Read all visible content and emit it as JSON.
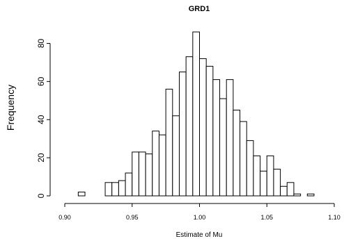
{
  "chart_data": {
    "type": "bar",
    "title": "GRD1",
    "xlabel": "Estimate of Mu",
    "ylabel": "Frequency",
    "xlim": [
      0.9,
      1.1
    ],
    "ylim": [
      0,
      86
    ],
    "bin_width": 0.005,
    "bin_starts": [
      0.91,
      0.915,
      0.92,
      0.925,
      0.93,
      0.935,
      0.94,
      0.945,
      0.95,
      0.955,
      0.96,
      0.965,
      0.97,
      0.975,
      0.98,
      0.985,
      0.99,
      0.995,
      1.0,
      1.005,
      1.01,
      1.015,
      1.02,
      1.025,
      1.03,
      1.035,
      1.04,
      1.045,
      1.05,
      1.055,
      1.06,
      1.065,
      1.07,
      1.075,
      1.08,
      1.085
    ],
    "values": [
      2,
      0,
      0,
      0,
      7,
      7,
      8,
      12,
      23,
      23,
      22,
      34,
      32,
      56,
      42,
      65,
      73,
      86,
      72,
      68,
      61,
      51,
      61,
      45,
      39,
      29,
      21,
      13,
      21,
      14,
      5,
      7,
      1,
      0,
      1,
      0
    ],
    "x_ticks": [
      "0.90",
      "0.95",
      "1.00",
      "1.05",
      "1.10"
    ],
    "y_ticks": [
      "0",
      "20",
      "40",
      "60",
      "80"
    ],
    "grid": false
  }
}
